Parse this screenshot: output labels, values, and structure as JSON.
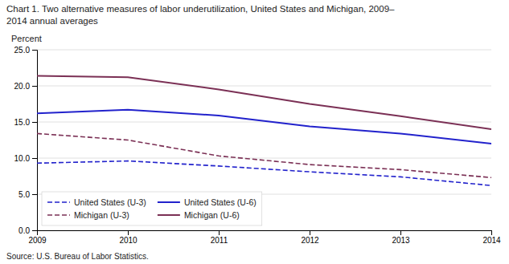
{
  "chart_data": {
    "type": "line",
    "title": [
      "Chart 1. Two alternative measures of labor underutilization, United States and Michigan, 2009–",
      "2014  annual averages"
    ],
    "ylabel": "Percent",
    "source": "Source: U.S. Bureau of Labor Statistics.",
    "x": [
      2009,
      2010,
      2011,
      2012,
      2013,
      2014
    ],
    "xlim": [
      2009,
      2014
    ],
    "xticks": [
      2009,
      2010,
      2011,
      2012,
      2013,
      2014
    ],
    "ylim": [
      0.0,
      25.0
    ],
    "yticks": [
      {
        "value": 0.0,
        "label": "0.0"
      },
      {
        "value": 5.0,
        "label": "5.0"
      },
      {
        "value": 10.0,
        "label": "10.0"
      },
      {
        "value": 15.0,
        "label": "15.0"
      },
      {
        "value": 20.0,
        "label": "20.0"
      },
      {
        "value": 25.0,
        "label": "25.0"
      }
    ],
    "grid": true,
    "legend": "lower left",
    "series": [
      {
        "name": "United States (U-3)",
        "color": "#2222cc",
        "line_style": "dashed",
        "values": [
          9.3,
          9.6,
          8.9,
          8.1,
          7.4,
          6.2
        ]
      },
      {
        "name": "Michigan (U-3)",
        "color": "#7b3055",
        "line_style": "dashed",
        "values": [
          13.4,
          12.5,
          10.3,
          9.1,
          8.4,
          7.3
        ]
      },
      {
        "name": "United States (U-6)",
        "color": "#2222cc",
        "line_style": "solid",
        "values": [
          16.2,
          16.7,
          15.9,
          14.4,
          13.4,
          12.0
        ]
      },
      {
        "name": "Michigan (U-6)",
        "color": "#7b3055",
        "line_style": "solid",
        "values": [
          21.4,
          21.2,
          19.5,
          17.5,
          15.8,
          14.0
        ]
      }
    ]
  }
}
